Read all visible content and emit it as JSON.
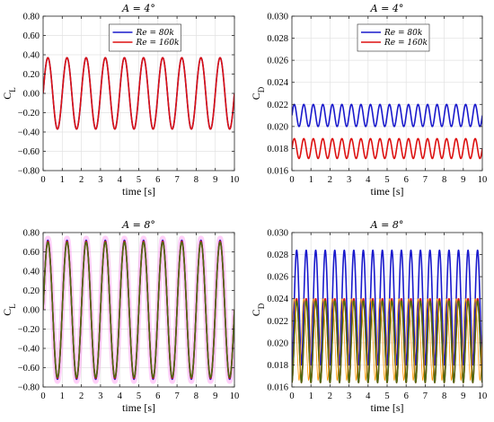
{
  "chart_data": [
    {
      "type": "line",
      "title": "A = 4°",
      "xlabel": "time [s]",
      "ylabel": "C",
      "ylabel_sub": "L",
      "xlim": [
        0,
        10
      ],
      "ylim": [
        -0.8,
        0.8
      ],
      "xticks": [
        "0",
        "1",
        "2",
        "3",
        "4",
        "5",
        "6",
        "7",
        "8",
        "9",
        "10"
      ],
      "yticks": [
        "0.80",
        "0.60",
        "0.40",
        "0.20",
        "0.00",
        "−0.20",
        "−0.40",
        "−0.60",
        "−0.80"
      ],
      "grid": true,
      "legend_position": "top-center",
      "series": [
        {
          "name": "Re = 80k",
          "color": "#1a1acc",
          "form": "sine",
          "mean": 0.0,
          "amplitude": 0.37,
          "frequency": 1.0,
          "phase": 0.0
        },
        {
          "name": "Re = 160k",
          "color": "#dd1111",
          "form": "sine",
          "mean": 0.0,
          "amplitude": 0.37,
          "frequency": 1.0,
          "phase": 0.0
        }
      ]
    },
    {
      "type": "line",
      "title": "A = 4°",
      "xlabel": "time [s]",
      "ylabel": "C",
      "ylabel_sub": "D",
      "xlim": [
        0,
        10
      ],
      "ylim": [
        0.016,
        0.03
      ],
      "xticks": [
        "0",
        "1",
        "2",
        "3",
        "4",
        "5",
        "6",
        "7",
        "8",
        "9",
        "10"
      ],
      "yticks": [
        "0.030",
        "0.028",
        "0.026",
        "0.024",
        "0.022",
        "0.020",
        "0.018",
        "0.016"
      ],
      "grid": true,
      "legend_position": "top-center",
      "series": [
        {
          "name": "Re = 80k",
          "color": "#1a1acc",
          "form": "sine",
          "mean": 0.021,
          "amplitude": 0.001,
          "frequency": 2.0,
          "phase": 0.0
        },
        {
          "name": "Re = 160k",
          "color": "#dd1111",
          "form": "sine",
          "mean": 0.018,
          "amplitude": 0.0009,
          "frequency": 2.0,
          "phase": 0.0
        }
      ]
    },
    {
      "type": "line",
      "title": "A = 8°",
      "xlabel": "time [s]",
      "ylabel": "C",
      "ylabel_sub": "L",
      "xlim": [
        0,
        10
      ],
      "ylim": [
        -0.8,
        0.8
      ],
      "xticks": [
        "0",
        "1",
        "2",
        "3",
        "4",
        "5",
        "6",
        "7",
        "8",
        "9",
        "10"
      ],
      "yticks": [
        "0.80",
        "0.60",
        "0.40",
        "0.20",
        "0.00",
        "−0.20",
        "−0.40",
        "−0.60",
        "−0.80"
      ],
      "grid": true,
      "series": [
        {
          "color": "#ff77ee",
          "form": "sine",
          "mean": 0.0,
          "amplitude": 0.74,
          "frequency": 1.0,
          "phase": 0.0,
          "width": 6,
          "opacity": 0.35
        },
        {
          "color": "#1a1acc",
          "form": "sine",
          "mean": 0.0,
          "amplitude": 0.72,
          "frequency": 1.0,
          "phase": 0.0
        },
        {
          "color": "#dd1111",
          "form": "sine",
          "mean": 0.0,
          "amplitude": 0.71,
          "frequency": 1.0,
          "phase": 0.0
        },
        {
          "color": "#4f6a10",
          "form": "sine",
          "mean": 0.0,
          "amplitude": 0.7,
          "frequency": 1.0,
          "phase": 0.0
        }
      ]
    },
    {
      "type": "line",
      "title": "A = 8°",
      "xlabel": "time [s]",
      "ylabel": "C",
      "ylabel_sub": "D",
      "xlim": [
        0,
        10
      ],
      "ylim": [
        0.016,
        0.03
      ],
      "xticks": [
        "0",
        "1",
        "2",
        "3",
        "4",
        "5",
        "6",
        "7",
        "8",
        "9",
        "10"
      ],
      "yticks": [
        "0.030",
        "0.028",
        "0.026",
        "0.024",
        "0.022",
        "0.020",
        "0.018",
        "0.016"
      ],
      "grid": true,
      "series": [
        {
          "color": "#1a1acc",
          "form": "peaked",
          "mean": 0.0232,
          "amplitude": 0.0052,
          "frequency": 2.0,
          "phase": 0.0
        },
        {
          "color": "#dd1111",
          "form": "peaked",
          "mean": 0.0202,
          "amplitude": 0.0038,
          "frequency": 2.0,
          "phase": 0.0
        },
        {
          "color": "#4f6a10",
          "form": "peaked",
          "mean": 0.0201,
          "amplitude": 0.0037,
          "frequency": 2.0,
          "phase": 0.0
        },
        {
          "color": "#ff9900",
          "form": "peaked",
          "mean": 0.0203,
          "amplitude": 0.0037,
          "frequency": 2.0,
          "phase": 0.25,
          "width": 0.8
        }
      ]
    }
  ]
}
